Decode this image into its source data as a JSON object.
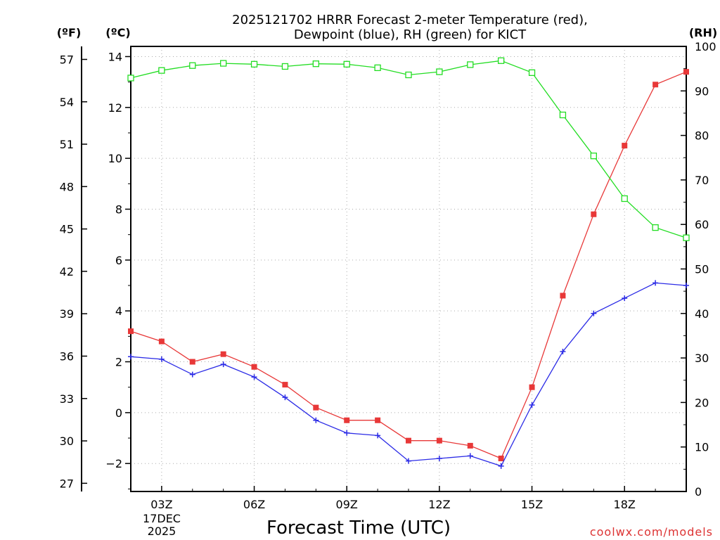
{
  "chart_data": {
    "type": "line",
    "title": "2025121702 HRRR Forecast 2-meter Temperature (red),",
    "subtitle": "Dewpoint (blue), RH (green) for KICT",
    "xlabel": "Forecast Time (UTC)",
    "x_hours": [
      2,
      3,
      4,
      5,
      6,
      7,
      8,
      9,
      10,
      11,
      12,
      13,
      14,
      15,
      16,
      17,
      18,
      19,
      20
    ],
    "x_ticks": [
      {
        "hour": 3,
        "label": "03Z"
      },
      {
        "hour": 6,
        "label": "06Z"
      },
      {
        "hour": 9,
        "label": "09Z"
      },
      {
        "hour": 12,
        "label": "12Z"
      },
      {
        "hour": 15,
        "label": "15Z"
      },
      {
        "hour": 18,
        "label": "18Z"
      }
    ],
    "date_label_line1": "17DEC",
    "date_label_line2": "2025",
    "xlim": [
      2,
      20
    ],
    "y_celsius": {
      "unit_label": "(ºC)",
      "ylim": [
        -3.1,
        14.4
      ],
      "ticks": [
        {
          "v": -2,
          "label": "−2"
        },
        {
          "v": 0,
          "label": "0"
        },
        {
          "v": 2,
          "label": "2"
        },
        {
          "v": 4,
          "label": "4"
        },
        {
          "v": 6,
          "label": "6"
        },
        {
          "v": 8,
          "label": "8"
        },
        {
          "v": 10,
          "label": "10"
        },
        {
          "v": 12,
          "label": "12"
        },
        {
          "v": 14,
          "label": "14"
        }
      ]
    },
    "y_fahrenheit": {
      "unit_label": "(ºF)",
      "ticks": [
        27,
        30,
        33,
        36,
        39,
        42,
        45,
        48,
        51,
        54,
        57
      ]
    },
    "y_rh": {
      "unit_label": "(RH)",
      "ylim": [
        0,
        100
      ],
      "ticks": [
        0,
        10,
        20,
        30,
        40,
        50,
        60,
        70,
        80,
        90,
        100
      ]
    },
    "grid": true,
    "series": [
      {
        "name": "Temperature",
        "axis": "celsius",
        "color": "#e83838",
        "marker": "filled-square",
        "values": [
          3.2,
          2.8,
          2.0,
          2.3,
          1.8,
          1.1,
          0.2,
          -0.3,
          -0.3,
          -1.1,
          -1.1,
          -1.3,
          -1.8,
          1.0,
          4.6,
          7.8,
          10.5,
          12.9,
          13.4
        ]
      },
      {
        "name": "Dewpoint",
        "axis": "celsius",
        "color": "#2b2be6",
        "marker": "plus",
        "values": [
          2.2,
          2.1,
          1.5,
          1.9,
          1.4,
          0.6,
          -0.3,
          -0.8,
          -0.9,
          -1.9,
          -1.8,
          -1.7,
          -2.1,
          0.3,
          2.4,
          3.9,
          4.5,
          5.1,
          5.0
        ]
      },
      {
        "name": "RH",
        "axis": "rh",
        "color": "#22dd22",
        "marker": "open-square",
        "values": [
          92.9,
          94.6,
          95.7,
          96.2,
          96.0,
          95.5,
          96.1,
          96.0,
          95.2,
          93.6,
          94.3,
          95.9,
          96.8,
          94.1,
          84.6,
          75.4,
          65.8,
          59.3,
          57.0
        ]
      }
    ]
  },
  "credit": "coolwx.com/models",
  "colors": {
    "axis": "#000000",
    "grid": "#aaaaaa",
    "credit": "#dd3333"
  }
}
